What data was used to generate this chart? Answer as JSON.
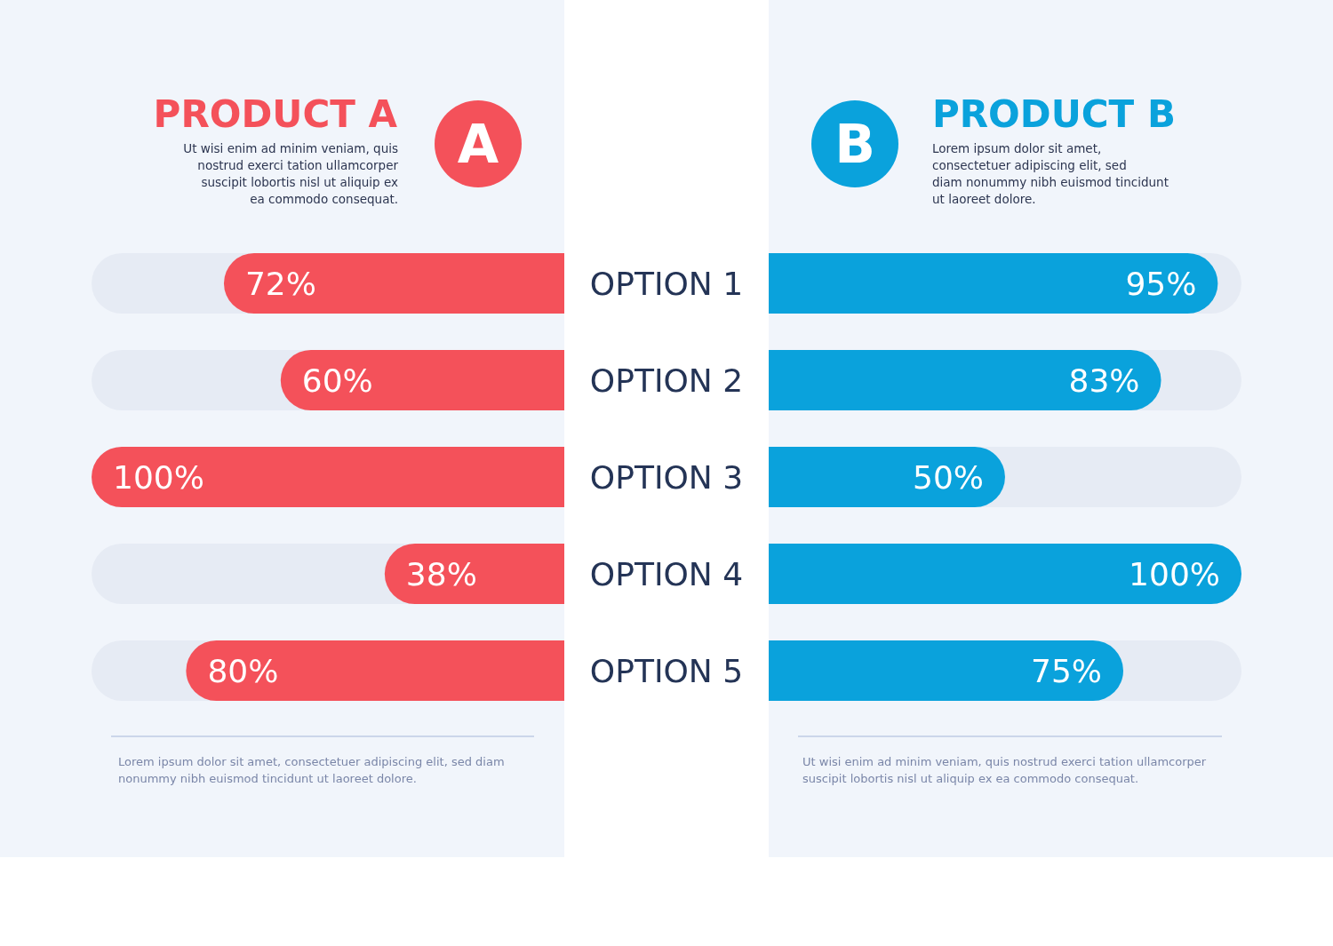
{
  "chart_data": [
    {
      "type": "bar",
      "orientation": "horizontal",
      "title": "PRODUCT A",
      "categories": [
        "OPTION 1",
        "OPTION 2",
        "OPTION 3",
        "OPTION 4",
        "OPTION 5"
      ],
      "series": [
        {
          "color": "#f4515a",
          "values": [
            72,
            60,
            100,
            38,
            80
          ],
          "value_labels": [
            "72%",
            "60%",
            "100%",
            "38%",
            "80%"
          ]
        }
      ],
      "annotations": [
        "A",
        "Ut wisi enim ad minim veniam, quis nostrud exerci tation ullamcorper suscipit lobortis nisl ut aliquip ex ea commodo consequat.",
        "Lorem ipsum dolor sit amet, consectetuer adipiscing elit, sed diam nonummy nibh euismod tincidunt ut laoreet dolore."
      ]
    },
    {
      "type": "bar",
      "orientation": "horizontal",
      "title": "PRODUCT B",
      "categories": [
        null,
        null,
        null,
        null,
        null
      ],
      "series": [
        {
          "color": "#0aa2dc",
          "values": [
            95,
            83,
            50,
            100,
            75
          ],
          "value_labels": [
            "95%",
            "83%",
            "50%",
            "100%",
            "75%"
          ]
        }
      ],
      "annotations": [
        "B",
        "Lorem ipsum dolor sit amet, consectetuer adipiscing elit, sed diam nonummy nibh euismod tincidunt ut laoreet dolore.",
        "Ut wisi enim ad minim veniam, quis nostrud exerci tation ullamcorper suscipit lobortis nisl ut aliquip ex ea commodo consequat."
      ]
    }
  ]
}
